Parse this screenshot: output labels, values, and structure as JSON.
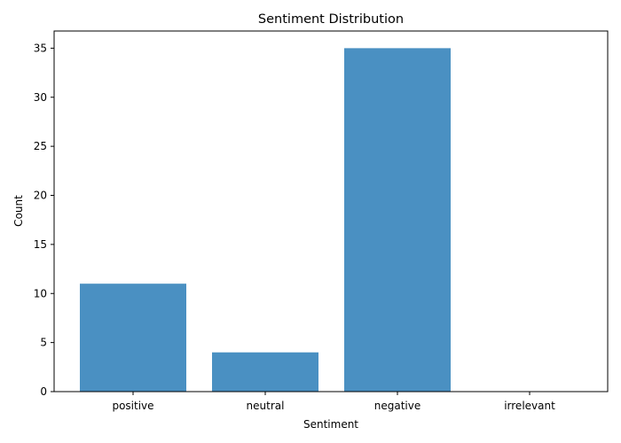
{
  "chart_data": {
    "type": "bar",
    "title": "Sentiment Distribution",
    "xlabel": "Sentiment",
    "ylabel": "Count",
    "categories": [
      "positive",
      "neutral",
      "negative",
      "irrelevant"
    ],
    "values": [
      11,
      4,
      35,
      0
    ],
    "ylim": [
      0,
      36.75
    ],
    "yticks": [
      0,
      5,
      10,
      15,
      20,
      25,
      30,
      35
    ],
    "grid": false,
    "bar_color": "#4a90c2"
  }
}
